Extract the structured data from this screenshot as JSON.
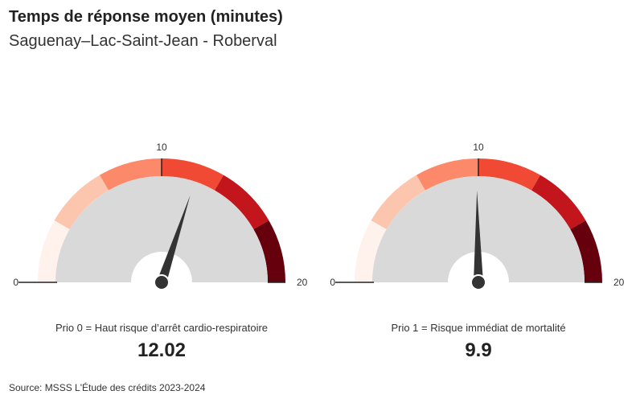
{
  "title": "Temps de réponse moyen (minutes)",
  "subtitle": "Saguenay–Lac-Saint-Jean - Roberval",
  "source": "Source: MSSS L'Étude des crédits 2023-2024",
  "colors": {
    "bands": [
      "#fff1eb",
      "#fcc5ae",
      "#fc8a6a",
      "#f04a35",
      "#c3161c",
      "#67000d"
    ],
    "inner": "#d9d9d9",
    "needle": "#333333"
  },
  "chart_data": [
    {
      "type": "gauge",
      "min": 0,
      "max": 20,
      "ticks": [
        "0",
        "10",
        "20"
      ],
      "label": "Prio 0 = Haut risque d’arrêt cardio-respiratoire",
      "value": 12.02,
      "value_text": "12.02"
    },
    {
      "type": "gauge",
      "min": 0,
      "max": 20,
      "ticks": [
        "0",
        "10",
        "20"
      ],
      "label": "Prio 1 = Risque immédiat de mortalité",
      "value": 9.9,
      "value_text": "9.9"
    }
  ]
}
